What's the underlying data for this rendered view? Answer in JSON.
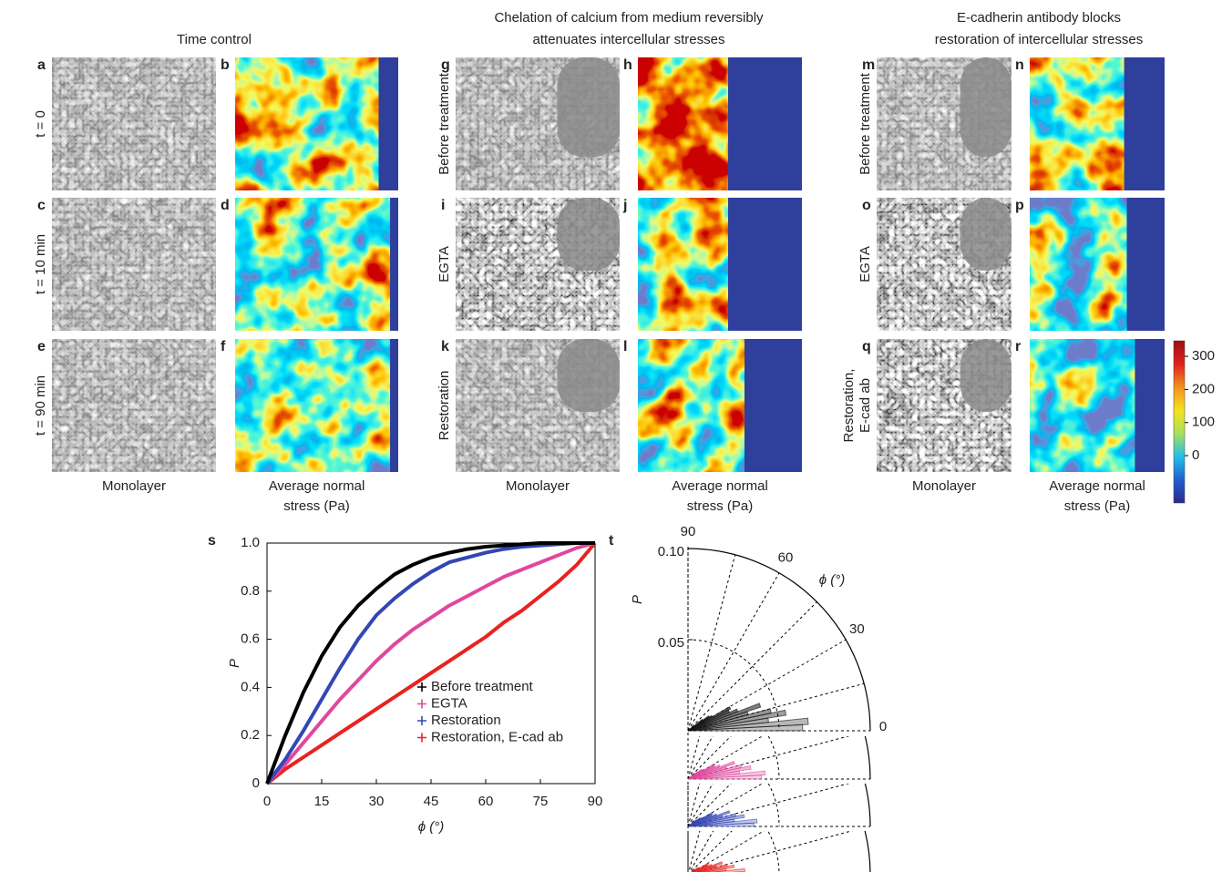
{
  "groups": [
    {
      "title_lines": [
        "Time control"
      ],
      "panels": [
        [
          "a",
          "b"
        ],
        [
          "c",
          "d"
        ],
        [
          "e",
          "f"
        ]
      ],
      "row_labels": [
        [
          "t = 0"
        ],
        [
          "t = 10 min"
        ],
        [
          "t = 90 min"
        ]
      ],
      "monolayer": "Monolayer",
      "stress_lines": [
        "Average normal",
        "stress (Pa)"
      ]
    },
    {
      "title_lines": [
        "Chelation of calcium from medium reversibly",
        "attenuates intercellular stresses"
      ],
      "panels": [
        [
          "g",
          "h"
        ],
        [
          "i",
          "j"
        ],
        [
          "k",
          "l"
        ]
      ],
      "row_labels": [
        [
          "Before treatment"
        ],
        [
          "EGTA"
        ],
        [
          "Restoration"
        ]
      ],
      "monolayer": "Monolayer",
      "stress_lines": [
        "Average normal",
        "stress (Pa)"
      ]
    },
    {
      "title_lines": [
        "E-cadherin antibody blocks",
        "restoration of intercellular stresses"
      ],
      "panels": [
        [
          "m",
          "n"
        ],
        [
          "o",
          "p"
        ],
        [
          "q",
          "r"
        ]
      ],
      "row_labels": [
        [
          "Before treatment"
        ],
        [
          "EGTA"
        ],
        [
          "Restoration,",
          "E-cad ab"
        ]
      ],
      "monolayer": "Monolayer",
      "stress_lines": [
        "Average normal",
        "stress (Pa)"
      ]
    }
  ],
  "colorbar": {
    "lim": [
      -143,
      347
    ],
    "ticks": [
      0,
      100,
      200,
      300
    ]
  },
  "chart_data": {
    "type": "line",
    "label": "s",
    "xlabel": "ϕ (°)",
    "ylabel": "P",
    "x": [
      0,
      5,
      10,
      15,
      20,
      25,
      30,
      35,
      40,
      45,
      50,
      55,
      60,
      65,
      70,
      75,
      80,
      85,
      90
    ],
    "series": [
      {
        "name": "Restoration, E-cad ab",
        "color": "#e8231f",
        "values": [
          0,
          0.06,
          0.11,
          0.16,
          0.21,
          0.26,
          0.31,
          0.36,
          0.41,
          0.46,
          0.51,
          0.56,
          0.61,
          0.67,
          0.72,
          0.78,
          0.84,
          0.91,
          1
        ]
      },
      {
        "name": "EGTA",
        "color": "#e0479e",
        "values": [
          0,
          0.08,
          0.17,
          0.26,
          0.35,
          0.43,
          0.51,
          0.58,
          0.64,
          0.69,
          0.74,
          0.78,
          0.82,
          0.86,
          0.89,
          0.92,
          0.95,
          0.98,
          1
        ]
      },
      {
        "name": "Restoration",
        "color": "#3246b4",
        "values": [
          0,
          0.1,
          0.22,
          0.35,
          0.48,
          0.6,
          0.7,
          0.77,
          0.83,
          0.88,
          0.92,
          0.94,
          0.96,
          0.975,
          0.985,
          0.99,
          0.995,
          1,
          1
        ]
      },
      {
        "name": "Before treatment",
        "color": "#000000",
        "values": [
          0,
          0.2,
          0.38,
          0.53,
          0.65,
          0.74,
          0.81,
          0.87,
          0.91,
          0.94,
          0.96,
          0.975,
          0.985,
          0.99,
          0.995,
          1,
          1,
          1,
          1
        ]
      }
    ],
    "legend_order": [
      3,
      1,
      2,
      0
    ],
    "xlim": [
      0,
      90
    ],
    "ylim": [
      0,
      1
    ],
    "xticks": [
      0,
      15,
      30,
      45,
      60,
      75,
      90
    ],
    "yticks": [
      0,
      0.2,
      0.4,
      0.6,
      0.8,
      {
        "value": 1,
        "label": "1.0"
      }
    ]
  },
  "polar": {
    "label": "t",
    "angle_ticks": [
      90,
      60,
      30,
      0
    ],
    "radial_ticks": [
      {
        "value": 0.1,
        "label": "0.10"
      },
      0.05
    ],
    "rmax": 0.1,
    "radial_label": "P",
    "angle_label": "ϕ (°)"
  }
}
